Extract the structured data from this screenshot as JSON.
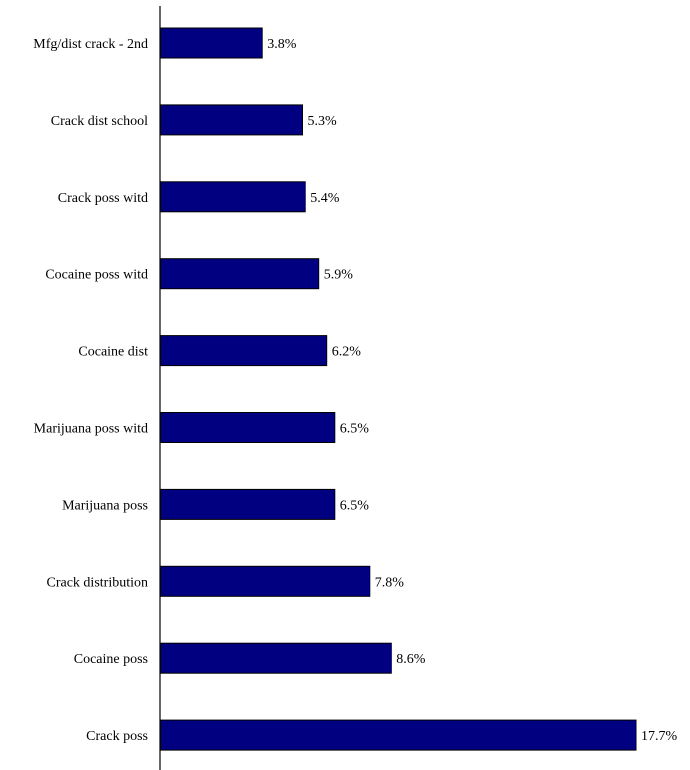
{
  "chart_data": {
    "type": "bar",
    "orientation": "horizontal",
    "categories": [
      "Mfg/dist crack - 2nd",
      "Crack dist school",
      "Crack poss witd",
      "Cocaine poss witd",
      "Cocaine dist",
      "Marijuana poss witd",
      "Marijuana poss",
      "Crack distribution",
      "Cocaine poss",
      "Crack poss"
    ],
    "values": [
      3.8,
      5.3,
      5.4,
      5.9,
      6.2,
      6.5,
      6.5,
      7.8,
      8.6,
      17.7
    ],
    "value_labels": [
      "3.8%",
      "5.3%",
      "5.4%",
      "5.9%",
      "6.2%",
      "6.5%",
      "6.5%",
      "7.8%",
      "8.6%",
      "17.7%"
    ],
    "xlim": [
      0,
      17.7
    ],
    "grid": false,
    "bar_color": "#000080",
    "bar_edge_color": "#000000"
  }
}
